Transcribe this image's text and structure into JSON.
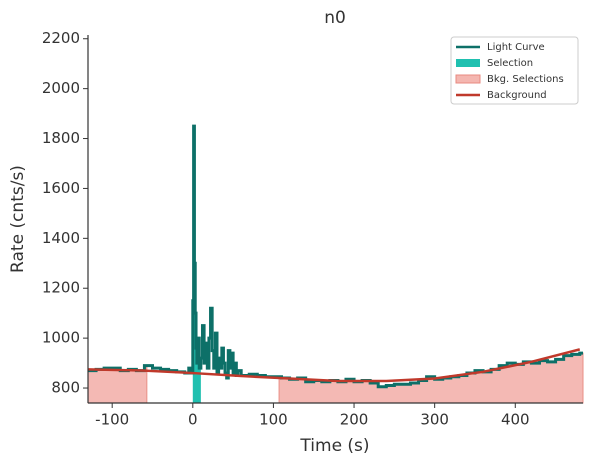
{
  "chart_data": {
    "type": "lightcurve",
    "title": "n0",
    "xlabel": "Time (s)",
    "ylabel": "Rate (cnts/s)",
    "xlim": [
      -130,
      484
    ],
    "ylim": [
      740,
      2215
    ],
    "xticks": [
      -100,
      0,
      100,
      200,
      300,
      400
    ],
    "yticks": [
      800,
      1000,
      1200,
      1400,
      1600,
      1800,
      2000,
      2200
    ],
    "series": [
      {
        "name": "Light Curve",
        "color": "#0d7068",
        "x": [
          -130,
          -120,
          -110,
          -100,
          -90,
          -80,
          -70,
          -60,
          -50,
          -40,
          -30,
          -20,
          -10,
          -5,
          -2,
          0,
          1,
          2,
          3,
          4,
          5,
          6,
          8,
          10,
          12,
          14,
          16,
          18,
          20,
          22,
          24,
          26,
          28,
          30,
          32,
          34,
          36,
          38,
          40,
          42,
          44,
          46,
          48,
          50,
          52,
          54,
          56,
          60,
          70,
          80,
          90,
          100,
          110,
          120,
          130,
          140,
          150,
          160,
          170,
          180,
          190,
          200,
          210,
          220,
          230,
          240,
          250,
          260,
          270,
          280,
          290,
          300,
          310,
          320,
          330,
          340,
          350,
          360,
          370,
          380,
          390,
          400,
          410,
          420,
          430,
          440,
          450,
          460,
          470,
          480
        ],
        "values": [
          870,
          875,
          880,
          880,
          870,
          875,
          870,
          890,
          880,
          875,
          870,
          865,
          860,
          880,
          860,
          1150,
          1850,
          1300,
          1100,
          960,
          900,
          1000,
          880,
          920,
          1050,
          900,
          980,
          880,
          1000,
          1120,
          950,
          880,
          1020,
          860,
          920,
          880,
          960,
          900,
          860,
          840,
          950,
          880,
          940,
          860,
          900,
          850,
          870,
          850,
          855,
          850,
          845,
          845,
          840,
          835,
          840,
          825,
          830,
          825,
          830,
          825,
          835,
          825,
          830,
          820,
          805,
          810,
          815,
          815,
          820,
          830,
          845,
          835,
          840,
          845,
          850,
          860,
          870,
          865,
          875,
          890,
          900,
          895,
          905,
          900,
          910,
          905,
          915,
          930,
          935,
          940
        ]
      },
      {
        "name": "Selection",
        "color": "#20c0b0",
        "intervals": [
          [
            0,
            10
          ]
        ]
      },
      {
        "name": "Bkg. Selections",
        "color": "#f4b6b0",
        "intervals": [
          [
            -130,
            -57
          ],
          [
            107,
            484
          ]
        ]
      },
      {
        "name": "Background",
        "color": "#c0392b",
        "x": [
          -130,
          -60,
          0,
          60,
          120,
          180,
          240,
          300,
          360,
          420,
          480
        ],
        "values": [
          875,
          870,
          860,
          848,
          838,
          828,
          828,
          838,
          865,
          905,
          955
        ]
      }
    ]
  }
}
